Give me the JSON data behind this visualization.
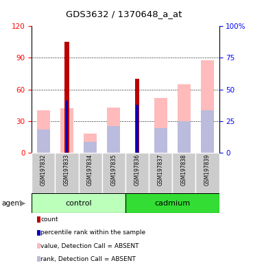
{
  "title": "GDS3632 / 1370648_a_at",
  "samples": [
    "GSM197832",
    "GSM197833",
    "GSM197834",
    "GSM197835",
    "GSM197836",
    "GSM197837",
    "GSM197838",
    "GSM197839"
  ],
  "ylim_left": [
    0,
    120
  ],
  "ylim_right": [
    0,
    100
  ],
  "yticks_left": [
    0,
    30,
    60,
    90,
    120
  ],
  "yticks_right": [
    0,
    25,
    50,
    75,
    100
  ],
  "yticklabels_right": [
    "0",
    "25",
    "50",
    "75",
    "100%"
  ],
  "count_values": [
    0,
    105,
    0,
    0,
    70,
    0,
    0,
    0
  ],
  "percentile_values": [
    0,
    41,
    0,
    0,
    38,
    0,
    0,
    0
  ],
  "absent_value_values": [
    40,
    42,
    18,
    43,
    0,
    52,
    65,
    88
  ],
  "absent_rank_values": [
    22,
    0,
    10,
    25,
    0,
    23,
    30,
    40
  ],
  "color_count": "#bb0000",
  "color_percentile": "#0000bb",
  "color_absent_value": "#ffbbbb",
  "color_absent_rank": "#bbbbdd",
  "control_group_color": "#bbffbb",
  "cadmium_group_color": "#33dd33",
  "legend_items": [
    {
      "label": "count",
      "color": "#bb0000"
    },
    {
      "label": "percentile rank within the sample",
      "color": "#0000bb"
    },
    {
      "label": "value, Detection Call = ABSENT",
      "color": "#ffbbbb"
    },
    {
      "label": "rank, Detection Call = ABSENT",
      "color": "#bbbbdd"
    }
  ]
}
